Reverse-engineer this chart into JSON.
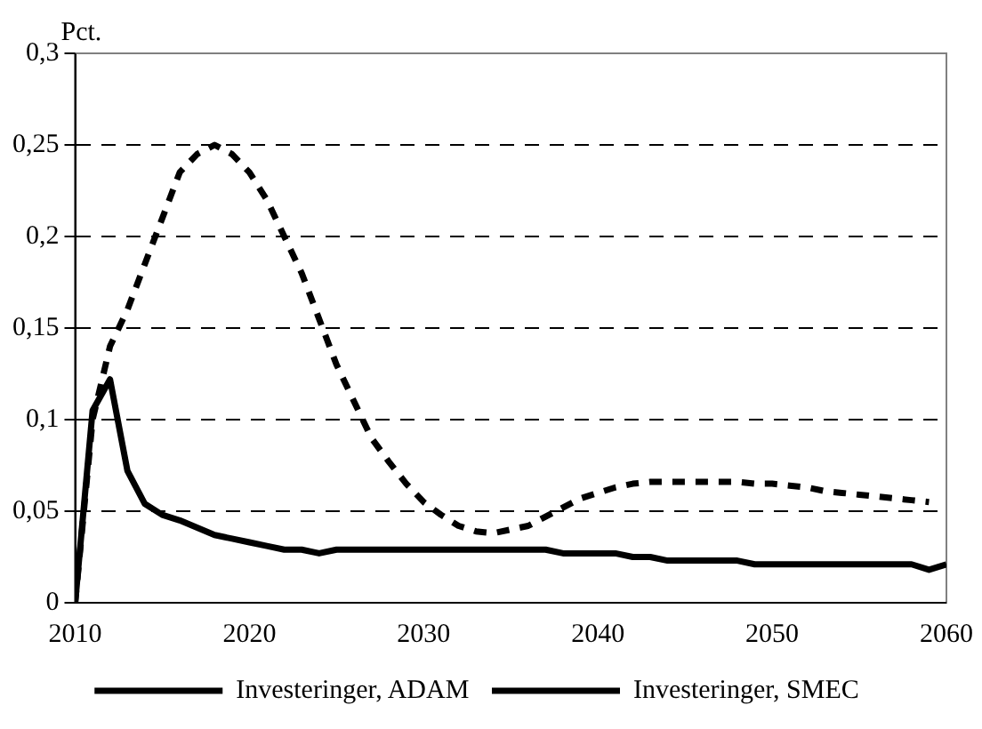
{
  "chart_data": {
    "type": "line",
    "ylabel": "Pct.",
    "x": [
      2010,
      2011,
      2012,
      2013,
      2014,
      2015,
      2016,
      2017,
      2018,
      2019,
      2020,
      2021,
      2022,
      2023,
      2024,
      2025,
      2026,
      2027,
      2028,
      2029,
      2030,
      2031,
      2032,
      2033,
      2034,
      2035,
      2036,
      2037,
      2038,
      2039,
      2040,
      2041,
      2042,
      2043,
      2044,
      2045,
      2046,
      2047,
      2048,
      2049,
      2050,
      2051,
      2052,
      2053,
      2054,
      2055,
      2056,
      2057,
      2058,
      2059,
      2060
    ],
    "series": [
      {
        "name": "Investeringer, ADAM",
        "color": "#000000",
        "line_style": "solid",
        "values": [
          0,
          0.105,
          0.122,
          0.072,
          0.054,
          0.048,
          0.045,
          0.041,
          0.037,
          0.035,
          0.033,
          0.031,
          0.029,
          0.029,
          0.027,
          0.029,
          0.029,
          0.029,
          0.029,
          0.029,
          0.029,
          0.029,
          0.029,
          0.029,
          0.029,
          0.029,
          0.029,
          0.029,
          0.027,
          0.027,
          0.027,
          0.027,
          0.025,
          0.025,
          0.023,
          0.023,
          0.023,
          0.023,
          0.023,
          0.021,
          0.021,
          0.021,
          0.021,
          0.021,
          0.021,
          0.021,
          0.021,
          0.021,
          0.021,
          0.018,
          0.021
        ]
      },
      {
        "name": "Investeringer, SMEC",
        "color": "#000000",
        "line_style": "dashed",
        "values": [
          0,
          0.1,
          0.14,
          0.16,
          0.185,
          0.21,
          0.235,
          0.245,
          0.25,
          0.245,
          0.235,
          0.22,
          0.2,
          0.18,
          0.155,
          0.13,
          0.11,
          0.09,
          0.077,
          0.065,
          0.055,
          0.048,
          0.042,
          0.039,
          0.038,
          0.04,
          0.042,
          0.047,
          0.052,
          0.057,
          0.06,
          0.063,
          0.065,
          0.066,
          0.066,
          0.066,
          0.066,
          0.066,
          0.066,
          0.065,
          0.065,
          0.064,
          0.063,
          0.061,
          0.06,
          0.059,
          0.058,
          0.057,
          0.056,
          0.055,
          null
        ]
      }
    ],
    "xlim": [
      2010,
      2060
    ],
    "xticks": [
      2010,
      2020,
      2030,
      2040,
      2050,
      2060
    ],
    "ylim": [
      0,
      0.3
    ],
    "yticks": [
      {
        "value": 0,
        "label": "0"
      },
      {
        "value": 0.05,
        "label": "0,05"
      },
      {
        "value": 0.1,
        "label": "0,1"
      },
      {
        "value": 0.15,
        "label": "0,15"
      },
      {
        "value": 0.2,
        "label": "0,2"
      },
      {
        "value": 0.25,
        "label": "0,25"
      },
      {
        "value": 0.3,
        "label": "0,3"
      }
    ],
    "grid": "y",
    "legend": "bottom",
    "marker": "none"
  }
}
